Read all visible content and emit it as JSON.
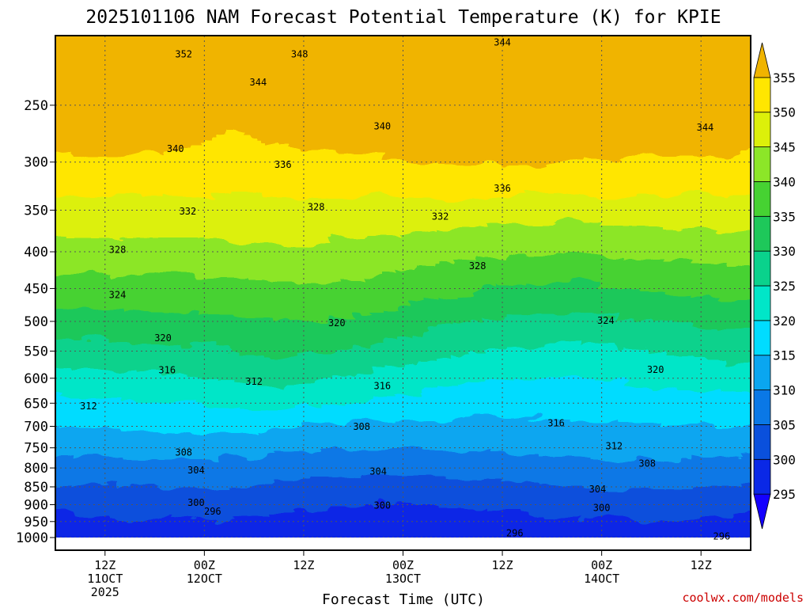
{
  "title": "2025101106 NAM Forecast Potential Temperature (K) for KPIE",
  "credit": "coolwx.com/models",
  "colors": {
    "ground": "#a0522d",
    "grid": "#555555",
    "contour": "#000000"
  },
  "chart_data": {
    "type": "heatmap",
    "title": "2025101106 NAM Forecast Potential Temperature (K) for KPIE",
    "xlabel": "Forecast Time (UTC)",
    "ylabel": "",
    "x_unit": "forecast hour",
    "xlim": [
      0,
      84
    ],
    "y_unit": "pressure (hPa)",
    "y_scale": "log",
    "ylim": [
      1000,
      200
    ],
    "y_ticks": [
      250,
      300,
      350,
      400,
      450,
      500,
      550,
      600,
      650,
      700,
      750,
      800,
      850,
      900,
      950,
      1000
    ],
    "x_ticks": [
      {
        "hour": 6,
        "lines": [
          "12Z",
          "11OCT",
          "2025"
        ]
      },
      {
        "hour": 18,
        "lines": [
          "00Z",
          "12OCT"
        ]
      },
      {
        "hour": 30,
        "lines": [
          "12Z"
        ]
      },
      {
        "hour": 42,
        "lines": [
          "00Z",
          "13OCT"
        ]
      },
      {
        "hour": 54,
        "lines": [
          "12Z"
        ]
      },
      {
        "hour": 66,
        "lines": [
          "00Z",
          "14OCT"
        ]
      },
      {
        "hour": 78,
        "lines": [
          "12Z"
        ]
      }
    ],
    "colorbar": {
      "unit": "K",
      "levels": [
        295,
        300,
        305,
        310,
        315,
        320,
        325,
        330,
        335,
        340,
        345,
        350,
        355
      ],
      "colors": [
        "#1400ff",
        "#0a28e6",
        "#0a50dc",
        "#0a78e6",
        "#0aa6f0",
        "#00dcff",
        "#00e6c8",
        "#0ad28c",
        "#1ec85a",
        "#46d232",
        "#8ce628",
        "#dcf00a",
        "#ffe600",
        "#f0b400"
      ],
      "extend": "both"
    },
    "contour_labels": [
      {
        "value": 352,
        "hour": 15.5,
        "p": 212
      },
      {
        "value": 348,
        "hour": 29.5,
        "p": 212
      },
      {
        "value": 344,
        "hour": 54.0,
        "p": 204
      },
      {
        "value": 344,
        "hour": 24.5,
        "p": 232
      },
      {
        "value": 344,
        "hour": 78.5,
        "p": 268
      },
      {
        "value": 340,
        "hour": 39.5,
        "p": 267
      },
      {
        "value": 340,
        "hour": 14.5,
        "p": 287
      },
      {
        "value": 336,
        "hour": 27.5,
        "p": 302
      },
      {
        "value": 336,
        "hour": 54.0,
        "p": 326
      },
      {
        "value": 332,
        "hour": 16.0,
        "p": 351
      },
      {
        "value": 332,
        "hour": 46.5,
        "p": 357
      },
      {
        "value": 328,
        "hour": 31.5,
        "p": 346
      },
      {
        "value": 328,
        "hour": 7.5,
        "p": 397
      },
      {
        "value": 328,
        "hour": 51.0,
        "p": 418
      },
      {
        "value": 324,
        "hour": 7.5,
        "p": 459
      },
      {
        "value": 324,
        "hour": 66.5,
        "p": 498
      },
      {
        "value": 320,
        "hour": 13.0,
        "p": 527
      },
      {
        "value": 320,
        "hour": 34.0,
        "p": 502
      },
      {
        "value": 320,
        "hour": 72.5,
        "p": 583
      },
      {
        "value": 316,
        "hour": 13.5,
        "p": 584
      },
      {
        "value": 316,
        "hour": 39.5,
        "p": 614
      },
      {
        "value": 316,
        "hour": 60.5,
        "p": 692
      },
      {
        "value": 312,
        "hour": 24.0,
        "p": 606
      },
      {
        "value": 312,
        "hour": 4.0,
        "p": 655
      },
      {
        "value": 312,
        "hour": 67.5,
        "p": 745
      },
      {
        "value": 308,
        "hour": 37.0,
        "p": 700
      },
      {
        "value": 308,
        "hour": 15.5,
        "p": 760
      },
      {
        "value": 308,
        "hour": 71.5,
        "p": 788
      },
      {
        "value": 304,
        "hour": 17.0,
        "p": 805
      },
      {
        "value": 304,
        "hour": 39.0,
        "p": 808
      },
      {
        "value": 304,
        "hour": 65.5,
        "p": 855
      },
      {
        "value": 300,
        "hour": 17.0,
        "p": 893
      },
      {
        "value": 300,
        "hour": 39.5,
        "p": 901
      },
      {
        "value": 300,
        "hour": 66.0,
        "p": 908
      },
      {
        "value": 296,
        "hour": 19.0,
        "p": 918
      },
      {
        "value": 296,
        "hour": 55.5,
        "p": 985
      },
      {
        "value": 296,
        "hour": 80.5,
        "p": 995
      }
    ]
  }
}
